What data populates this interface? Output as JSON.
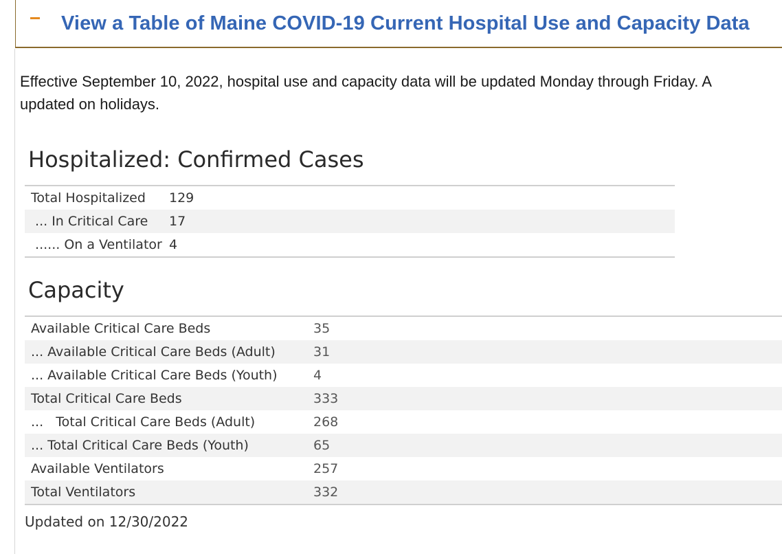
{
  "accordion": {
    "toggle_icon": "minus-icon",
    "title": "View a Table of Maine COVID-19 Current Hospital Use and Capacity Data"
  },
  "notice": {
    "line1": "Effective September 10, 2022, hospital use and capacity data will be updated Monday through Friday. A",
    "line2": "updated on holidays."
  },
  "hospitalized": {
    "title": "Hospitalized: Confirmed Cases",
    "rows": [
      {
        "label": "Total Hospitalized",
        "value": "129"
      },
      {
        "label": " ... In Critical Care",
        "value": "17"
      },
      {
        "label": " ...... On a Ventilator",
        "value": "4"
      }
    ]
  },
  "capacity": {
    "title": "Capacity",
    "rows": [
      {
        "label": "Available Critical Care Beds",
        "value": "35"
      },
      {
        "label": "... Available Critical Care Beds (Adult)",
        "value": "31"
      },
      {
        "label": "... Available Critical Care Beds (Youth)",
        "value": "4"
      },
      {
        "label": "Total Critical Care Beds",
        "value": "333"
      },
      {
        "label": "...   Total Critical Care Beds (Adult)",
        "value": "268"
      },
      {
        "label": "... Total Critical Care Beds (Youth)",
        "value": "65"
      },
      {
        "label": "Available Ventilators",
        "value": "257"
      },
      {
        "label": "Total Ventilators",
        "value": "332"
      }
    ]
  },
  "updated": "Updated on 12/30/2022",
  "colors": {
    "title_blue": "#3566b5",
    "toggle_orange": "#e58a1f",
    "header_border": "#8a6a2c",
    "row_alt": "#f2f2f2"
  }
}
